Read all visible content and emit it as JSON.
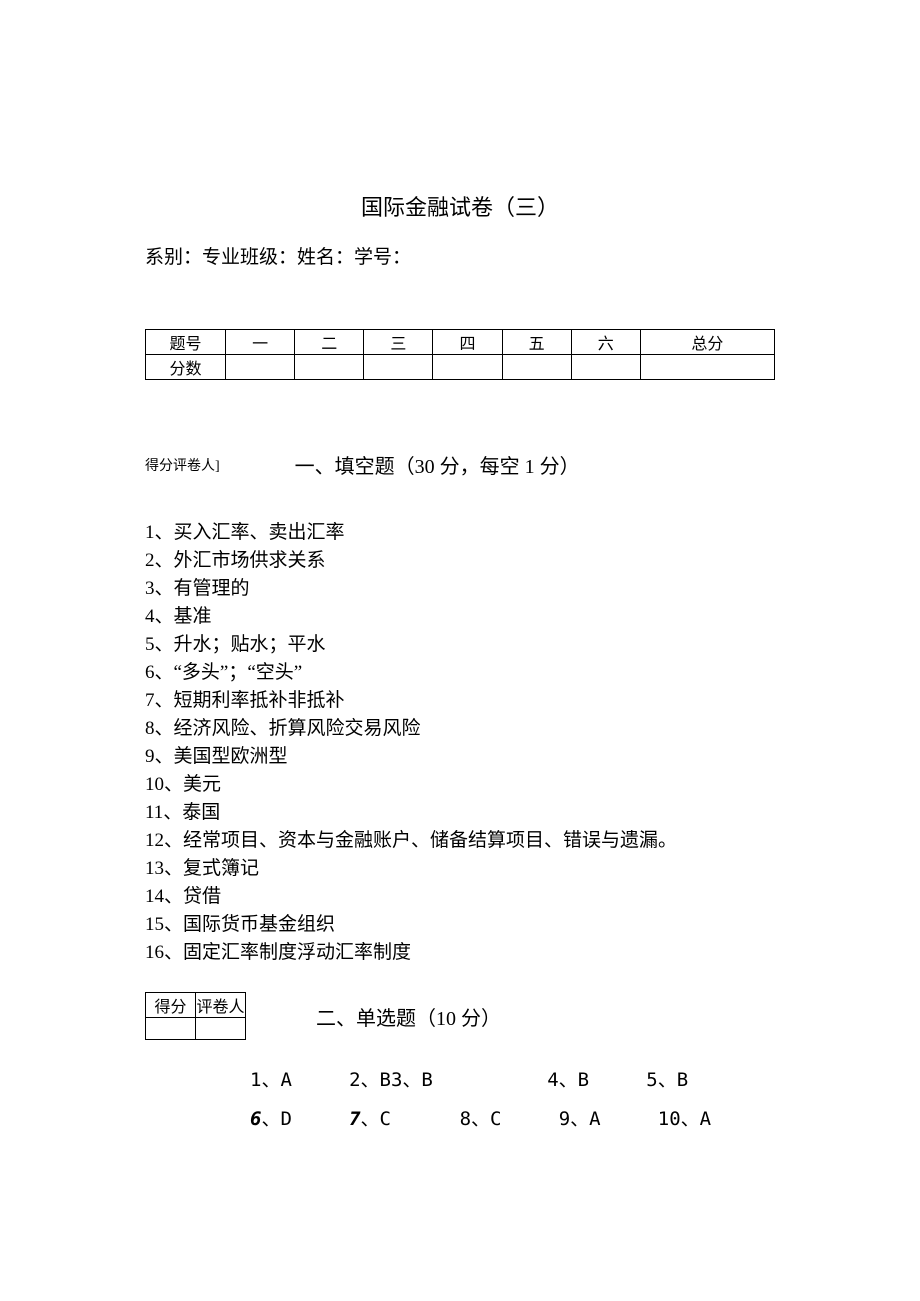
{
  "title": "国际金融试卷（三）",
  "info_line": "系别：专业班级：姓名：学号：",
  "score_table": {
    "row_label_1": "题号",
    "row_label_2": "分数",
    "cols": [
      "一",
      "二",
      "三",
      "四",
      "五",
      "六",
      "总分"
    ]
  },
  "reviewer_label": "得分评卷人]",
  "section1_title": "一、填空题（30 分，每空 1 分）",
  "fill_answers": [
    "1、买入汇率、卖出汇率",
    "2、外汇市场供求关系",
    "3、有管理的",
    "4、基准",
    "5、升水；贴水；平水",
    "6、“多头”；“空头”",
    "7、短期利率抵补非抵补",
    "8、经济风险、折算风险交易风险",
    "9、美国型欧洲型",
    "10、美元",
    "11、泰国",
    "12、经常项目、资本与金融账户、储备结算项目、错误与遗漏。",
    "13、复式簿记",
    "14、贷借",
    "15、国际货币基金组织",
    "16、固定汇率制度浮动汇率制度"
  ],
  "mini_table": {
    "h1": "得分",
    "h2": "评卷人"
  },
  "section2_title": "二、单选题（10 分）",
  "mc_row1": "1、A     2、B3、B          4、B     5、B",
  "mc_row2a": "6",
  "mc_row2b": "、D     ",
  "mc_row2c": "7",
  "mc_row2d": "、C      8、C     9、A     10、A"
}
